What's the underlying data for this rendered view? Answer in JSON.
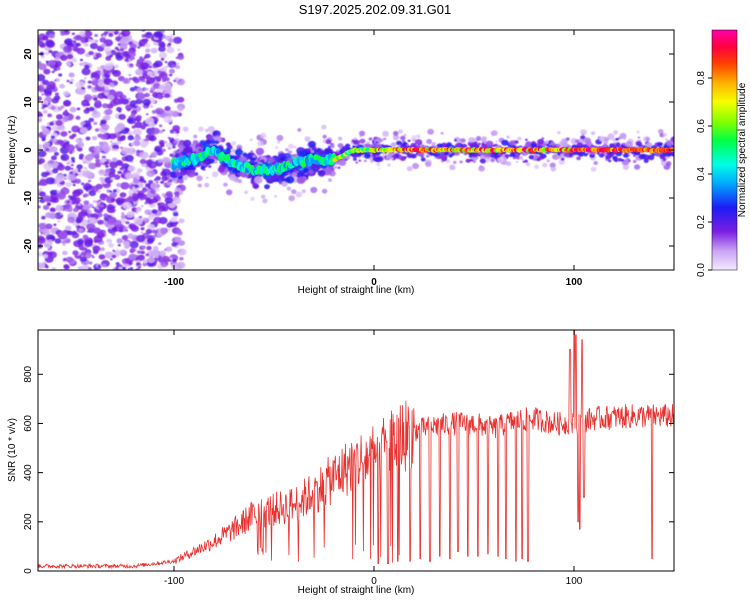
{
  "title": "S197.2025.202.09.31.G01",
  "colors": {
    "snr_line": "#e8312f",
    "axis": "#000000",
    "background": "#ffffff"
  },
  "chart_data": [
    {
      "type": "heatmap",
      "name": "spectrogram",
      "xlabel": "Height of straight line (km)",
      "ylabel": "Frequency (Hz)",
      "xlim": [
        -168,
        150
      ],
      "ylim": [
        -25,
        25
      ],
      "xticks": [
        -100,
        0,
        100
      ],
      "xtick_labels": [
        "-100",
        "0",
        "100"
      ],
      "yticks": [
        -20,
        -10,
        0,
        10,
        20
      ],
      "ytick_labels": [
        "-20",
        "-10",
        "0",
        "10",
        "20"
      ],
      "colorbar": {
        "label": "Normalized spectral amplitude",
        "range": [
          0,
          1
        ],
        "ticks": [
          0,
          0.2,
          0.4,
          0.6,
          0.8
        ],
        "tick_labels": [
          "0.0",
          "0.2",
          "0.4",
          "0.6",
          "0.8"
        ],
        "colormap": "rainbow (white-violet-blue-cyan-green-yellow-orange-red-magenta)"
      },
      "regions": [
        {
          "x_range": [
            -168,
            -100
          ],
          "description": "broadband scattered noise",
          "amplitude": 0.15
        },
        {
          "x_range": [
            -100,
            -20
          ],
          "freq_center": -3,
          "amplitude": 0.35
        },
        {
          "x_range": [
            -20,
            150
          ],
          "freq_center": 0,
          "amplitude": 0.95
        }
      ],
      "ridge": {
        "x": [
          -100,
          -90,
          -80,
          -70,
          -60,
          -50,
          -40,
          -30,
          -20,
          -10,
          0,
          50,
          100,
          150
        ],
        "freq": [
          -3,
          -2,
          0,
          -3,
          -4,
          -4,
          -3,
          -2,
          -2,
          0,
          0,
          0,
          0,
          0
        ]
      }
    },
    {
      "type": "line",
      "name": "snr",
      "xlabel": "Height of straight line (km)",
      "ylabel": "SNR (10 * v/v)",
      "xlim": [
        -168,
        150
      ],
      "ylim": [
        0,
        980
      ],
      "xticks": [
        -100,
        0,
        100
      ],
      "xtick_labels": [
        "-100",
        "0",
        "100"
      ],
      "yticks": [
        0,
        200,
        400,
        600,
        800
      ],
      "ytick_labels": [
        "0",
        "200",
        "400",
        "600",
        "800"
      ],
      "envelope": {
        "x": [
          -168,
          -120,
          -100,
          -90,
          -80,
          -70,
          -60,
          -50,
          -40,
          -30,
          -20,
          -10,
          0,
          10,
          20,
          30,
          40,
          50,
          60,
          70,
          80,
          90,
          100,
          110,
          120,
          130,
          140,
          150
        ],
        "y": [
          20,
          20,
          40,
          80,
          120,
          170,
          230,
          250,
          270,
          320,
          380,
          440,
          470,
          530,
          570,
          590,
          600,
          600,
          580,
          610,
          620,
          600,
          600,
          620,
          625,
          630,
          630,
          630
        ]
      },
      "dropouts": {
        "x": [
          2,
          7,
          12,
          18,
          23,
          28,
          33,
          38,
          42,
          47,
          52,
          57,
          62,
          66,
          71,
          74,
          77,
          139
        ],
        "y": [
          30,
          30,
          40,
          40,
          50,
          40,
          60,
          50,
          80,
          60,
          60,
          70,
          60,
          50,
          40,
          50,
          40,
          50
        ]
      },
      "spikes": {
        "x": [
          98,
          100,
          101,
          102,
          103,
          104,
          105
        ],
        "y": [
          900,
          980,
          960,
          200,
          170,
          940,
          300
        ]
      }
    }
  ]
}
